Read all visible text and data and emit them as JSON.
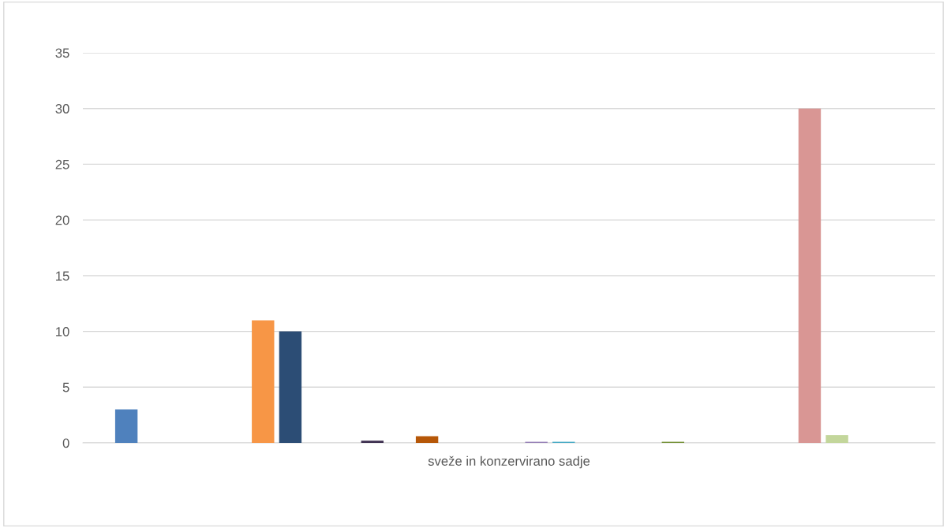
{
  "chart_data": {
    "type": "bar",
    "categories": [
      "sveže in konzervirano sadje"
    ],
    "ylim": [
      0,
      35
    ],
    "yticks": [
      0,
      5,
      10,
      15,
      20,
      25,
      30,
      35
    ],
    "grid": "y",
    "legend": false,
    "series": [
      {
        "color": "#4f81bd",
        "values": [
          3
        ]
      },
      {
        "values": [
          null
        ]
      },
      {
        "values": [
          null
        ]
      },
      {
        "values": [
          null
        ]
      },
      {
        "values": [
          null
        ]
      },
      {
        "color": "#f79646",
        "values": [
          11
        ]
      },
      {
        "color": "#2c4d75",
        "values": [
          10
        ]
      },
      {
        "values": [
          null
        ]
      },
      {
        "values": [
          null
        ]
      },
      {
        "color": "#3f3151",
        "values": [
          0.2
        ]
      },
      {
        "values": [
          null
        ]
      },
      {
        "color": "#b65708",
        "values": [
          0.6
        ]
      },
      {
        "values": [
          null
        ]
      },
      {
        "values": [
          null
        ]
      },
      {
        "values": [
          null
        ]
      },
      {
        "color": "#9983b8",
        "values": [
          0.1
        ]
      },
      {
        "color": "#4bacc6",
        "values": [
          0.1
        ]
      },
      {
        "values": [
          null
        ]
      },
      {
        "values": [
          null
        ]
      },
      {
        "values": [
          null
        ]
      },
      {
        "color": "#77933c",
        "values": [
          0.1
        ]
      },
      {
        "values": [
          null
        ]
      },
      {
        "values": [
          null
        ]
      },
      {
        "values": [
          null
        ]
      },
      {
        "values": [
          null
        ]
      },
      {
        "color": "#d99694",
        "values": [
          30
        ]
      },
      {
        "color": "#c3d69b",
        "values": [
          0.7
        ]
      },
      {
        "values": [
          null
        ]
      },
      {
        "values": [
          null
        ]
      }
    ]
  }
}
